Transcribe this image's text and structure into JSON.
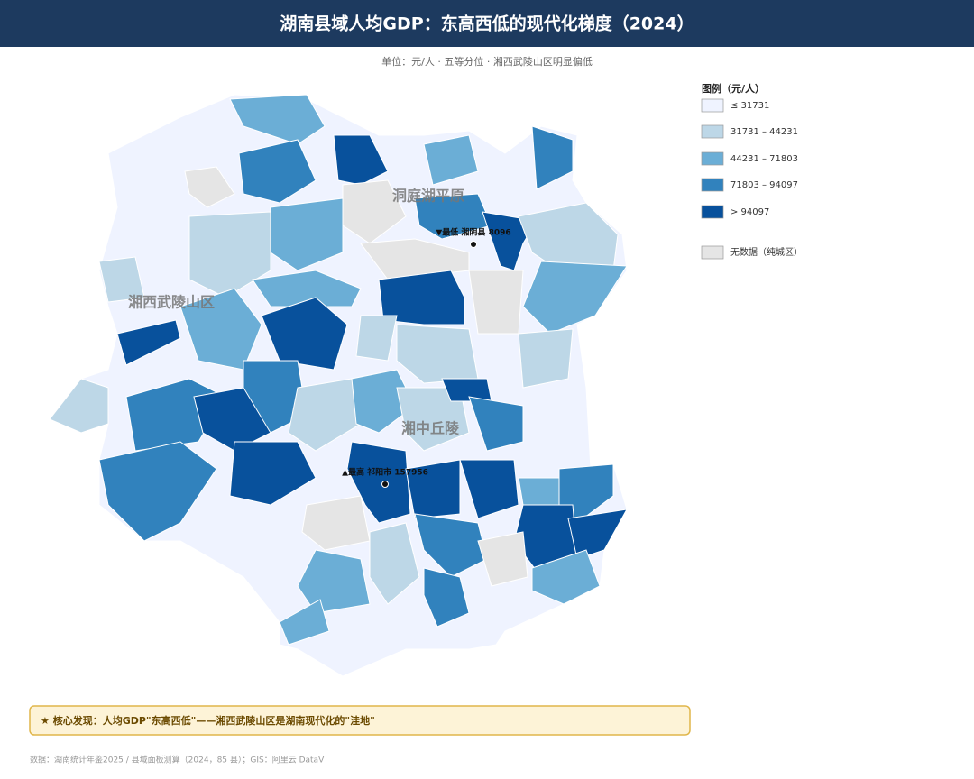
{
  "header": {
    "title": "湖南县域人均GDP：东高西低的现代化梯度（2024）",
    "subtitle": "单位：元/人 · 五等分位 · 湘西武陵山区明显偏低"
  },
  "legend": {
    "title": "图例（元/人）",
    "items": [
      {
        "label": "≤ 31731",
        "color": "#eff3ff"
      },
      {
        "label": "31731 – 44231",
        "color": "#bdd7e7"
      },
      {
        "label": "44231 – 71803",
        "color": "#6baed6"
      },
      {
        "label": "71803 – 94097",
        "color": "#3182bd"
      },
      {
        "label": "> 94097",
        "color": "#08519c"
      },
      {
        "label": "无数据（纯城区）",
        "color": "#e5e5e5"
      }
    ]
  },
  "map": {
    "regions": [
      "洞庭湖平原",
      "湘西武陵山区",
      "湘中丘陵"
    ],
    "annotations": [
      "▼最低 湘阴县 8096",
      "▲最高 祁阳市 157956"
    ]
  },
  "finding": "★ 核心发现：人均GDP\"东高西低\"——湘西武陵山区是湖南现代化的\"洼地\"",
  "footer": "数据：湖南统计年鉴2025 / 县域面板测算（2024，85 县）；GIS：阿里云 DataV"
}
